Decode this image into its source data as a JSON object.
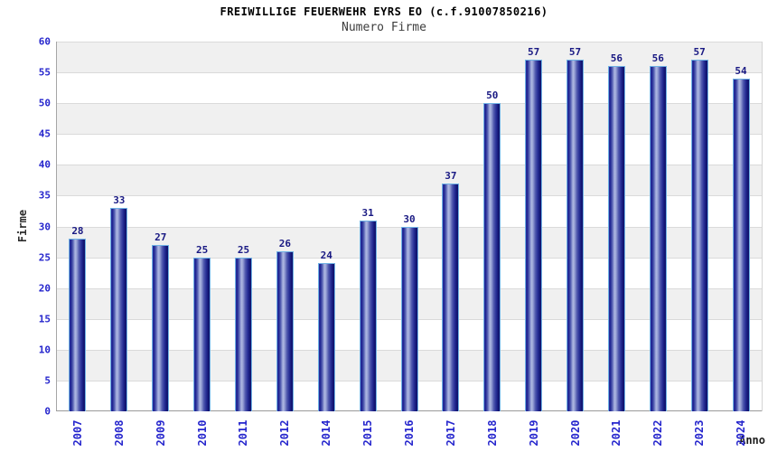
{
  "header": {
    "title": "FREIWILLIGE FEUERWEHR EYRS EO (c.f.91007850216)",
    "subtitle": "Numero Firme"
  },
  "axes": {
    "y_label": "Firme",
    "x_label": "Anno"
  },
  "chart_data": {
    "type": "bar",
    "title": "FREIWILLIGE FEUERWEHR EYRS EO (c.f.91007850216)",
    "subtitle": "Numero Firme",
    "xlabel": "Anno",
    "ylabel": "Firme",
    "categories": [
      "2007",
      "2008",
      "2009",
      "2010",
      "2011",
      "2012",
      "2014",
      "2015",
      "2016",
      "2017",
      "2018",
      "2019",
      "2020",
      "2021",
      "2022",
      "2023",
      "2024"
    ],
    "values": [
      28,
      33,
      27,
      25,
      25,
      26,
      24,
      31,
      30,
      37,
      50,
      57,
      57,
      56,
      56,
      57,
      54
    ],
    "ylim": [
      0,
      60
    ],
    "y_ticks": [
      0,
      5,
      10,
      15,
      20,
      25,
      30,
      35,
      40,
      45,
      50,
      55,
      60
    ],
    "grid": "horizontal alternating bands, gridline every 5 units",
    "legend": "none",
    "bar_labels_shown": true,
    "x_tick_rotation_deg": 90
  },
  "colors": {
    "band_gray": "#f0f0f0",
    "band_white": "#ffffff",
    "gridline": "#dadada",
    "axis_line": "#9a9a9a",
    "bar_dark": "#10136c",
    "bar_light": "#aeb8e2",
    "bar_outline": "#70b2e4",
    "value_label": "#191983",
    "tick_label": "#2626cd",
    "title": "#000000",
    "subtitle": "#3d3d3d"
  }
}
